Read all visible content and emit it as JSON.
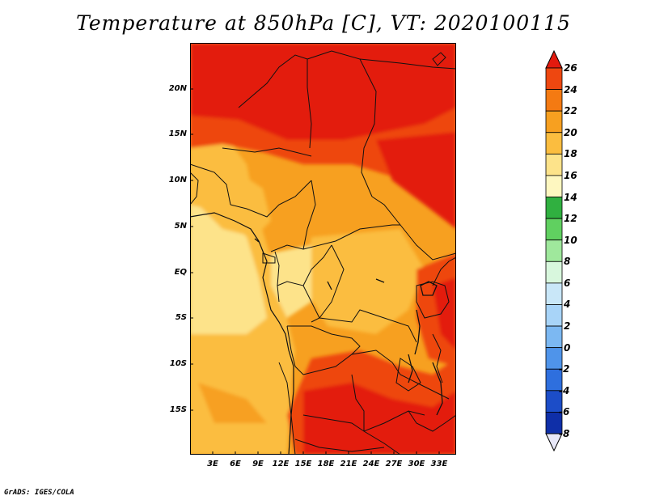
{
  "title": "Temperature at 850hPa [C], VT: 2020100115",
  "footer": "GrADS: IGES/COLA",
  "map": {
    "variable": "Temperature at 850hPa",
    "units": "C",
    "valid_time": "2020100115",
    "lat_labels": [
      "20N",
      "15N",
      "10N",
      "5N",
      "EQ",
      "5S",
      "10S",
      "15S"
    ],
    "lon_labels": [
      "3E",
      "6E",
      "9E",
      "12E",
      "15E",
      "18E",
      "21E",
      "24E",
      "27E",
      "30E",
      "33E"
    ]
  },
  "colorbar": {
    "levels": [
      "26",
      "24",
      "22",
      "20",
      "18",
      "16",
      "14",
      "12",
      "10",
      "8",
      "6",
      "4",
      "2",
      "0",
      "-2",
      "-4",
      "-6",
      "-8"
    ],
    "colors": [
      "#e31a0e",
      "#ee4710",
      "#f47a12",
      "#f7a020",
      "#fbbd3f",
      "#fde38a",
      "#fef7c0",
      "#30b040",
      "#60d060",
      "#9fe89c",
      "#d8f7dd",
      "#c9e7f8",
      "#a8d4f8",
      "#7cb8f2",
      "#4f94ea",
      "#2e6fde",
      "#1c4dc8",
      "#0f2fa8",
      "#0a1170"
    ],
    "triangle_bottom_color": "#e8e8f8"
  }
}
